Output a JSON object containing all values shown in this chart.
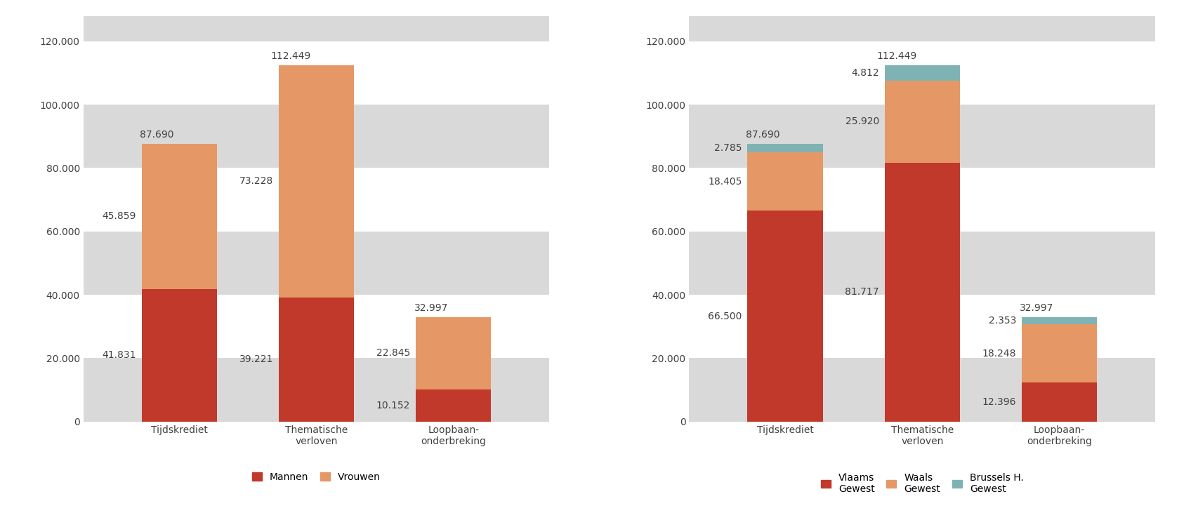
{
  "categories": [
    "Tijdskrediet",
    "Thematische\nverloven",
    "Loopbaan-\nonderbreking"
  ],
  "chart1": {
    "series": {
      "Mannen": [
        41831,
        39221,
        10152
      ],
      "Vrouwen": [
        45859,
        73228,
        22845
      ]
    },
    "totals": [
      87690,
      112449,
      32997
    ],
    "colors": {
      "Mannen": "#C1392B",
      "Vrouwen": "#E59866"
    }
  },
  "chart2": {
    "series": {
      "Vlaams Gewest": [
        66500,
        81717,
        12396
      ],
      "Waals Gewest": [
        18405,
        25920,
        18248
      ],
      "Brussels H. Gewest": [
        2785,
        4812,
        2353
      ]
    },
    "totals": [
      87690,
      112449,
      32997
    ],
    "colors": {
      "Vlaams Gewest": "#C1392B",
      "Waals Gewest": "#E59866",
      "Brussels H. Gewest": "#7FB3B3"
    }
  },
  "ylim": [
    0,
    128000
  ],
  "yticks": [
    0,
    20000,
    40000,
    60000,
    80000,
    100000,
    120000
  ],
  "ytick_labels": [
    "0",
    "20.000",
    "40.000",
    "60.000",
    "80.000",
    "100.000",
    "120.000"
  ],
  "stripe_colors": [
    "#ffffff",
    "#D9D9D9"
  ],
  "background_color": "#ffffff",
  "text_color": "#404040",
  "font_size_labels": 10,
  "font_size_ticks": 10,
  "font_size_legend": 10,
  "bar_width": 0.55
}
